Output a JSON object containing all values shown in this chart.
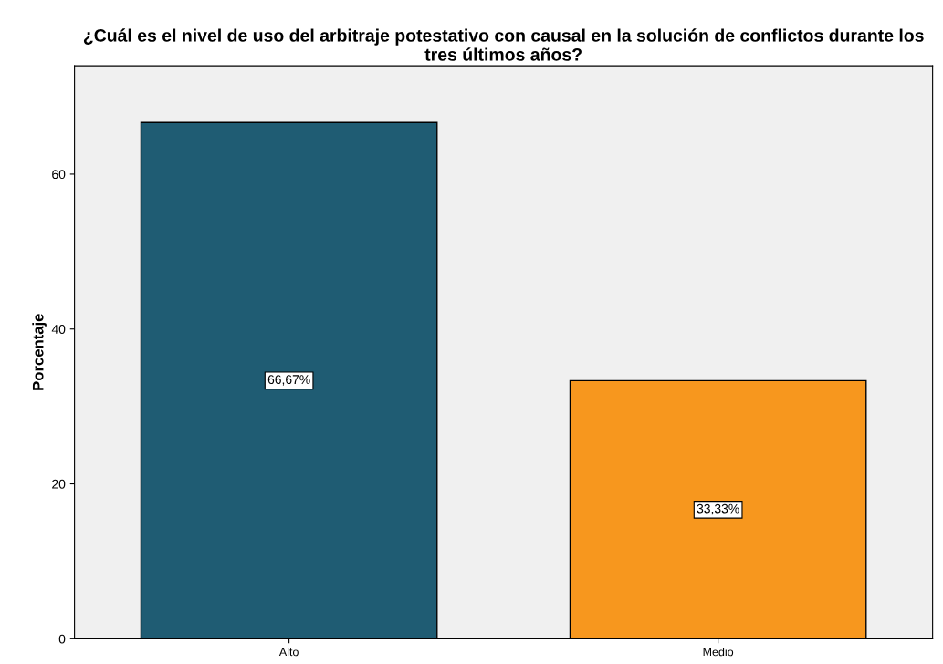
{
  "chart_data": {
    "type": "bar",
    "title": "¿Cuál es el nivel de uso del arbitraje potestativo con causal en la solución de conflictos durante los tres últimos años?",
    "ylabel": "Porcentaje",
    "categories": [
      "Alto",
      "Medio"
    ],
    "values": [
      66.67,
      33.33
    ],
    "colors": [
      "#1f5c73",
      "#f7971e"
    ],
    "value_labels": [
      "66,67%",
      "33,33%"
    ],
    "ylim": [
      0,
      74
    ],
    "yticks": [
      0,
      20,
      40,
      60
    ],
    "grid": false,
    "legend": false
  }
}
